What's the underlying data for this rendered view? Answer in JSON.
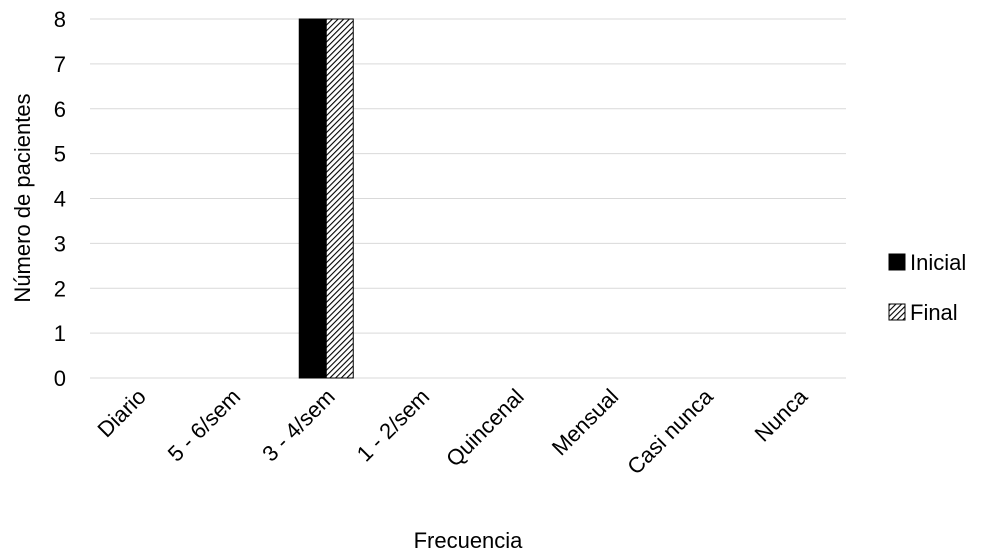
{
  "chart_data": {
    "type": "bar",
    "title": "",
    "xlabel": "Frecuencia",
    "ylabel": "Número de pacientes",
    "ylim": [
      0,
      8
    ],
    "yticks": [
      0,
      1,
      2,
      3,
      4,
      5,
      6,
      7,
      8
    ],
    "grid": true,
    "legend_position": "right",
    "categories": [
      "Diario",
      "5 - 6/sem",
      "3 - 4/sem",
      "1 - 2/sem",
      "Quincenal",
      "Mensual",
      "Casi nunca",
      "Nunca"
    ],
    "series": [
      {
        "name": "Inicial",
        "values": [
          0,
          0,
          8,
          0,
          0,
          0,
          0,
          0
        ],
        "color": "#000000",
        "pattern": "solid"
      },
      {
        "name": "Final",
        "values": [
          0,
          0,
          8,
          0,
          0,
          0,
          0,
          0
        ],
        "color": "#000000",
        "pattern": "diagonal-hatch"
      }
    ]
  }
}
